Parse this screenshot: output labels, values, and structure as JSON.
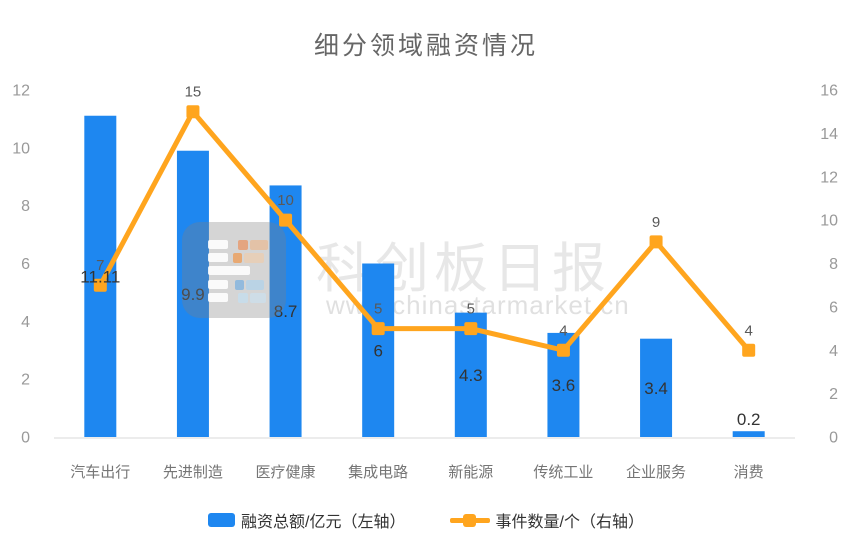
{
  "title": "细分领域融资情况",
  "colors": {
    "bar": "#1e87f0",
    "line": "#ffa51e",
    "axis_label": "#999999",
    "category_label": "#757575",
    "bar_value_label": "#333333",
    "line_value_label": "#595959",
    "axis_line": "#e6e6e6",
    "title_color": "#666666",
    "legend_text": "#333333"
  },
  "watermark": {
    "brand": "科创板日报",
    "url": "www.chinastarmarket.cn"
  },
  "legend": [
    {
      "label": "融资总额/亿元（左轴）",
      "type": "bar"
    },
    {
      "label": "事件数量/个（右轴）",
      "type": "line"
    }
  ],
  "chart_data": {
    "type": "bar+line",
    "title": "细分领域融资情况",
    "categories": [
      "汽车出行",
      "先进制造",
      "医疗健康",
      "集成电路",
      "新能源",
      "传统工业",
      "企业服务",
      "消费"
    ],
    "series": [
      {
        "name": "融资总额/亿元",
        "type": "bar",
        "axis": "left",
        "values": [
          11.11,
          9.9,
          8.7,
          6,
          4.3,
          3.6,
          3.4,
          0.2
        ]
      },
      {
        "name": "事件数量/个",
        "type": "line",
        "axis": "right",
        "values": [
          7,
          15,
          10,
          5,
          5,
          4,
          9,
          4
        ]
      }
    ],
    "left_axis": {
      "min": 0,
      "max": 12,
      "step": 2,
      "ticks": [
        0,
        2,
        4,
        6,
        8,
        10,
        12
      ]
    },
    "right_axis": {
      "min": 0,
      "max": 16,
      "step": 2,
      "ticks": [
        0,
        2,
        4,
        6,
        8,
        10,
        12,
        14,
        16
      ]
    },
    "grid": false,
    "legend_position": "bottom",
    "data_labels": true
  }
}
